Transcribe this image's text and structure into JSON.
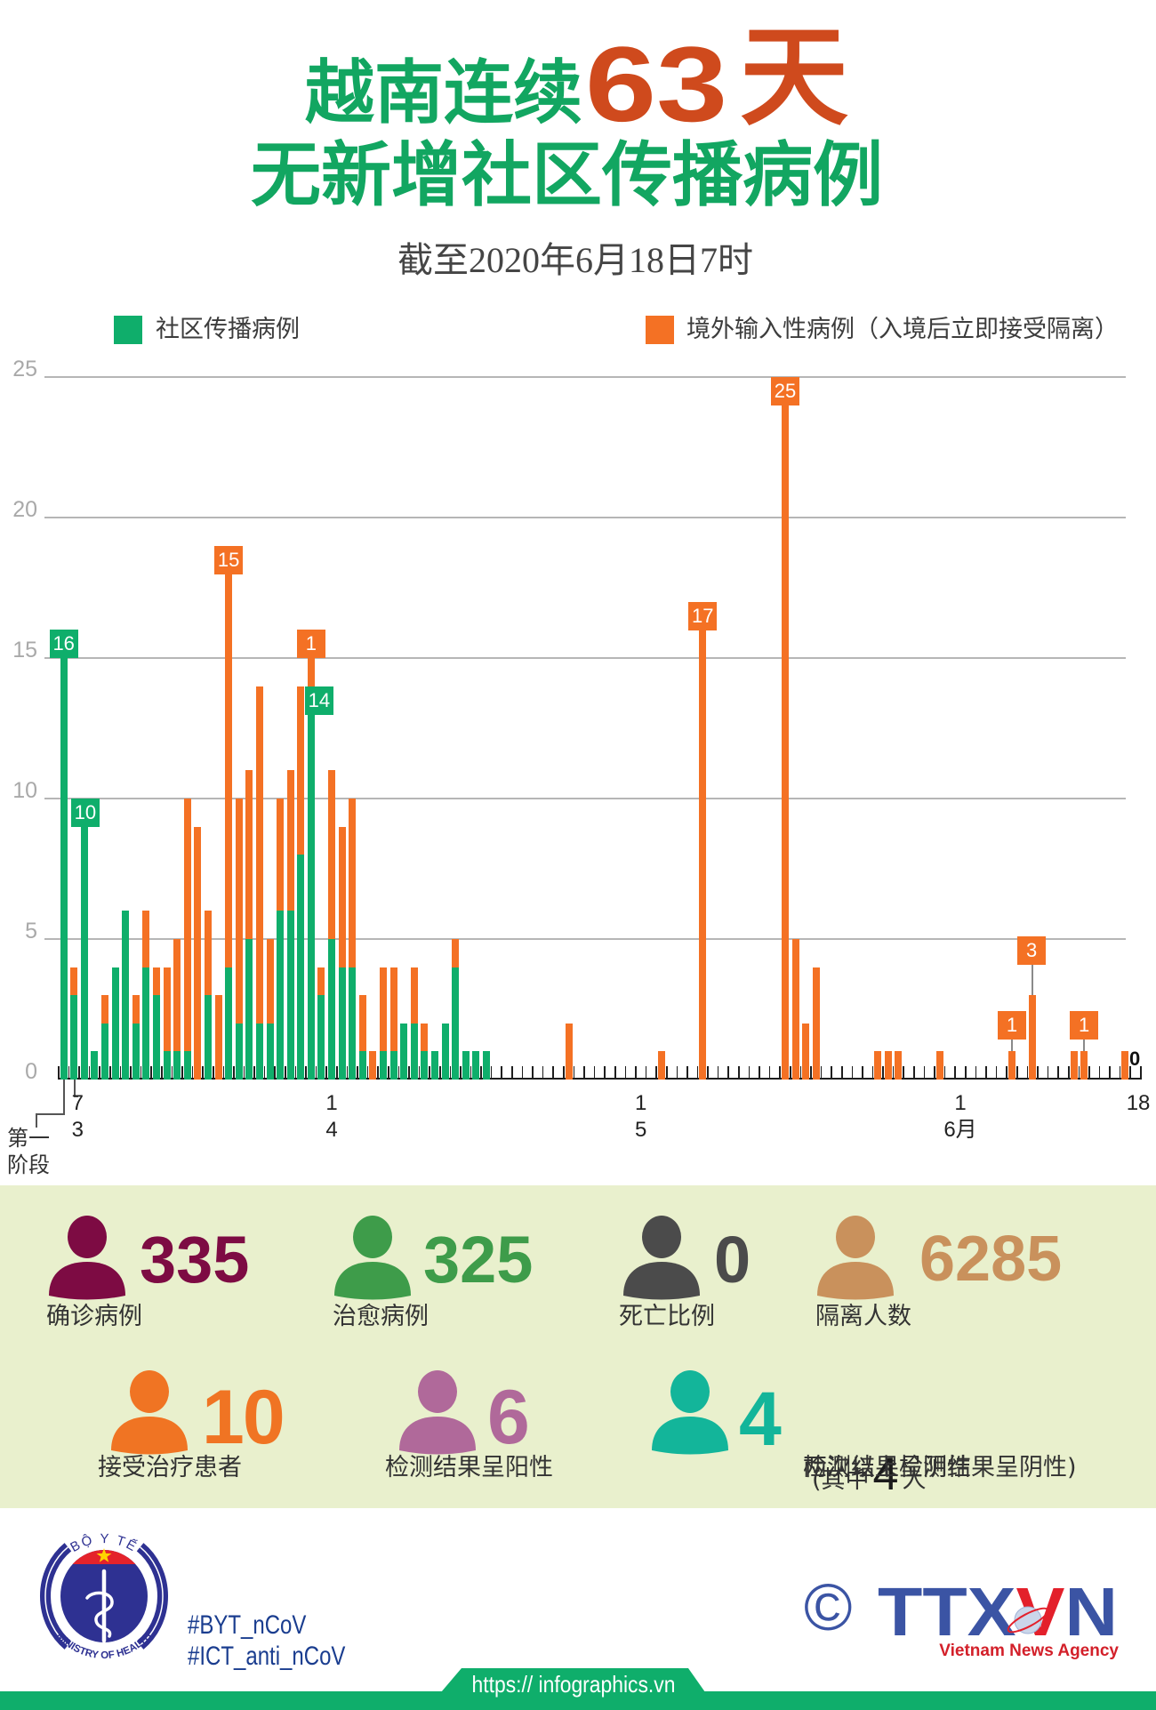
{
  "title": {
    "line1_prefix": "越南连续",
    "line1_number": "63",
    "line1_unit": "天",
    "line2": "无新增社区传播病例",
    "subtitle": "截至2020年6月18日7时"
  },
  "legend": [
    {
      "label": "社区传播病例",
      "color": "#0fae6b"
    },
    {
      "label": "境外输入性病例（入境后立即接受隔离）",
      "color": "#f47124"
    }
  ],
  "chart_data": {
    "type": "bar",
    "stacked": true,
    "title": "",
    "xlabel": "",
    "ylabel": "",
    "ylim": [
      0,
      25
    ],
    "y_ticks": [
      0,
      5,
      10,
      15,
      20,
      25
    ],
    "grid": true,
    "legend_position": "top",
    "categories": [
      "第一阶段",
      "3/7",
      "3/8",
      "3/9",
      "3/10",
      "3/11",
      "3/12",
      "3/13",
      "3/14",
      "3/15",
      "3/16",
      "3/17",
      "3/18",
      "3/19",
      "3/20",
      "3/21",
      "3/22",
      "3/23",
      "3/24",
      "3/25",
      "3/26",
      "3/27",
      "3/28",
      "3/29",
      "3/30",
      "3/31",
      "4/1",
      "4/2",
      "4/3",
      "4/4",
      "4/5",
      "4/6",
      "4/7",
      "4/8",
      "4/9",
      "4/10",
      "4/11",
      "4/12",
      "4/13",
      "4/14",
      "4/15",
      "4/16",
      "4/17",
      "4/18",
      "4/19",
      "4/20",
      "4/21",
      "4/22",
      "4/23",
      "4/24",
      "4/25",
      "4/26",
      "4/27",
      "4/28",
      "4/29",
      "4/30",
      "5/1",
      "5/2",
      "5/3",
      "5/4",
      "5/5",
      "5/6",
      "5/7",
      "5/8",
      "5/9",
      "5/10",
      "5/11",
      "5/12",
      "5/13",
      "5/14",
      "5/15",
      "5/16",
      "5/17",
      "5/18",
      "5/19",
      "5/20",
      "5/21",
      "5/22",
      "5/23",
      "5/24",
      "5/25",
      "5/26",
      "5/27",
      "5/28",
      "5/29",
      "5/30",
      "5/31",
      "6/1",
      "6/2",
      "6/3",
      "6/4",
      "6/5",
      "6/6",
      "6/7",
      "6/8",
      "6/9",
      "6/10",
      "6/11",
      "6/12",
      "6/13",
      "6/14",
      "6/15",
      "6/16",
      "6/17",
      "6/18"
    ],
    "series": [
      {
        "name": "社区传播病例",
        "color": "#0fae6b",
        "values": [
          16,
          3,
          10,
          1,
          2,
          4,
          6,
          2,
          4,
          3,
          1,
          1,
          1,
          0,
          3,
          0,
          4,
          2,
          5,
          2,
          2,
          6,
          6,
          8,
          14,
          3,
          5,
          4,
          4,
          1,
          0,
          1,
          1,
          2,
          2,
          1,
          1,
          2,
          4,
          1,
          1,
          1,
          0,
          0,
          0,
          0,
          0,
          0,
          0,
          0,
          0,
          0,
          0,
          0,
          0,
          0,
          0,
          0,
          0,
          0,
          0,
          0,
          0,
          0,
          0,
          0,
          0,
          0,
          0,
          0,
          0,
          0,
          0,
          0,
          0,
          0,
          0,
          0,
          0,
          0,
          0,
          0,
          0,
          0,
          0,
          0,
          0,
          0,
          0,
          0,
          0,
          0,
          0,
          0,
          0,
          0,
          0,
          0,
          0,
          0,
          0,
          0,
          0,
          0,
          0
        ]
      },
      {
        "name": "境外输入性病例（入境后立即接受隔离）",
        "color": "#f47124",
        "values": [
          0,
          1,
          0,
          0,
          1,
          0,
          0,
          1,
          2,
          1,
          3,
          4,
          9,
          9,
          3,
          3,
          15,
          8,
          6,
          12,
          3,
          4,
          5,
          6,
          1,
          1,
          6,
          5,
          6,
          2,
          1,
          3,
          3,
          0,
          2,
          1,
          0,
          0,
          1,
          0,
          0,
          0,
          0,
          0,
          0,
          0,
          0,
          0,
          0,
          2,
          0,
          0,
          0,
          0,
          0,
          0,
          0,
          0,
          1,
          0,
          0,
          0,
          17,
          0,
          0,
          0,
          0,
          0,
          0,
          0,
          25,
          5,
          2,
          4,
          0,
          0,
          0,
          0,
          0,
          1,
          1,
          1,
          0,
          0,
          0,
          1,
          0,
          0,
          0,
          0,
          0,
          0,
          1,
          0,
          3,
          0,
          0,
          0,
          1,
          1,
          0,
          0,
          0,
          1,
          0
        ]
      }
    ],
    "x_tick_labels": [
      {
        "index": 1,
        "day": "7",
        "month": "3",
        "dx": 4
      },
      {
        "index": 26,
        "day": "1",
        "month": "4",
        "dx": 0
      },
      {
        "index": 56,
        "day": "1",
        "month": "5",
        "dx": 0
      },
      {
        "index": 87,
        "day": "1",
        "month": "6月",
        "dx": 0
      },
      {
        "index": 104,
        "day": "18",
        "month": "",
        "dx": 3
      }
    ],
    "phase_label": [
      "第一",
      "阶段"
    ],
    "annotations": [
      {
        "index": 0,
        "text": "16",
        "series": 0,
        "box_top": 16,
        "dx": 0
      },
      {
        "index": 2,
        "text": "10",
        "series": 0,
        "box_top": 10,
        "dx": 1
      },
      {
        "index": 16,
        "text": "15",
        "series": 1,
        "box_top": 19,
        "dx": 0
      },
      {
        "index": 24,
        "text": "1",
        "series": 1,
        "box_top": 16,
        "dx": 0
      },
      {
        "index": 24,
        "text": "14",
        "series": 0,
        "box_top": 14,
        "dx": 9
      },
      {
        "index": 62,
        "text": "17",
        "series": 1,
        "box_top": 17,
        "dx": 0
      },
      {
        "index": 70,
        "text": "25",
        "series": 1,
        "box_top": 25,
        "dx": 0
      },
      {
        "index": 92,
        "text": "1",
        "series": 1,
        "box_top": 2.45,
        "dx": 0,
        "connector": true
      },
      {
        "index": 94,
        "text": "3",
        "series": 1,
        "box_top": 5.1,
        "dx": -1,
        "connector": true
      },
      {
        "index": 99,
        "text": "1",
        "series": 1,
        "box_top": 2.45,
        "dx": 0,
        "connector": true
      },
      {
        "index": 104,
        "text": "0",
        "plain": true
      }
    ]
  },
  "stats": [
    {
      "value": "335",
      "label": "确诊病例",
      "color": "#7d0b43"
    },
    {
      "value": "325",
      "label": "治愈病例",
      "color": "#3e9c4a"
    },
    {
      "value": "0",
      "label": "死亡比例",
      "color": "#4b4b4b"
    },
    {
      "value": "6285",
      "label": "隔离人数",
      "color": "#c9915c"
    },
    {
      "value": "10",
      "label": "接受治疗患者",
      "color": "#f07423"
    },
    {
      "value": "6",
      "label": "检测结果呈阳性",
      "color": "#b0699a"
    },
    {
      "value": "4",
      "label": "检测结果呈阴性",
      "note_open": "(其中",
      "note_value": "4",
      "note_unit": "人",
      "note_line2": "两次以上检测结果呈阴性)",
      "color": "#13b59a"
    }
  ],
  "footer": {
    "ministry_logo": {
      "top_text": "BỘ Y TẾ",
      "bottom_text": "MINISTRY OF HEALTH"
    },
    "hashtags": [
      "#BYT_nCoV",
      "#ICT_anti_nCoV"
    ],
    "copyright": "©",
    "agency_logo": {
      "parts": [
        "TTX",
        "V",
        "N"
      ],
      "tagline": "Vietnam News Agency"
    },
    "url": "https:// infographics.vn"
  }
}
